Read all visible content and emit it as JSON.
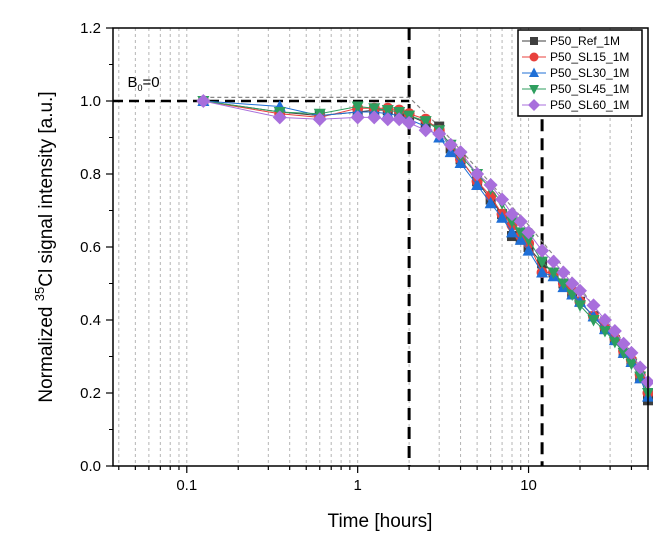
{
  "chart_data": {
    "type": "scatter",
    "xlabel": "Time [hours]",
    "ylabel_prefix": "Normalized ",
    "ylabel_sup": "35",
    "ylabel_suffix": "Cl signal intensity [a.u.]",
    "xscale": "log",
    "xlim": [
      0.037,
      50
    ],
    "ylim": [
      0.0,
      1.2
    ],
    "xticks": [
      {
        "v": 0.1,
        "label": "0.1"
      },
      {
        "v": 1,
        "label": "1"
      },
      {
        "v": 10,
        "label": "10"
      }
    ],
    "yticks": [
      {
        "v": 0.0,
        "label": "0.0"
      },
      {
        "v": 0.2,
        "label": "0.2"
      },
      {
        "v": 0.4,
        "label": "0.4"
      },
      {
        "v": 0.6,
        "label": "0.6"
      },
      {
        "v": 0.8,
        "label": "0.8"
      },
      {
        "v": 1.0,
        "label": "1.0"
      },
      {
        "v": 1.2,
        "label": "1.2"
      }
    ],
    "grid": "vertical minor dashed",
    "legend_position": "top-right",
    "annotation": {
      "text": "B",
      "sub": "0",
      "suffix": "=0",
      "x": 0.045,
      "y": 1.05
    },
    "reference_lines": [
      {
        "orientation": "horizontal",
        "y": 1.0,
        "x_from": 0.037,
        "x_to": 2
      },
      {
        "orientation": "vertical",
        "x": 2,
        "y_from": 0.0,
        "y_to": 1.2
      },
      {
        "orientation": "vertical",
        "x": 12,
        "y_from": 0.0,
        "y_to": 0.95
      }
    ],
    "envelope": {
      "x": [
        0.125,
        2,
        3,
        10,
        20,
        50
      ],
      "y": [
        1.01,
        1.01,
        0.93,
        0.66,
        0.49,
        0.22
      ]
    },
    "x": [
      0.125,
      0.35,
      0.6,
      1,
      1.25,
      1.5,
      1.75,
      2,
      2.5,
      3,
      3.5,
      4,
      5,
      6,
      7,
      8,
      9,
      10,
      12,
      14,
      16,
      18,
      20,
      24,
      28,
      32,
      36,
      40,
      45,
      50
    ],
    "series": [
      {
        "name": "P50_Ref_1M",
        "color": "#3f3f3f",
        "marker": "square",
        "values": [
          1.0,
          0.97,
          0.96,
          0.97,
          0.975,
          0.975,
          0.97,
          0.96,
          0.94,
          0.93,
          0.87,
          0.84,
          0.78,
          0.73,
          0.69,
          0.63,
          0.62,
          0.6,
          0.555,
          0.53,
          0.5,
          0.475,
          0.45,
          0.41,
          0.375,
          0.345,
          0.31,
          0.285,
          0.245,
          0.18
        ]
      },
      {
        "name": "P50_SL15_1M",
        "color": "#e8403c",
        "marker": "circle",
        "values": [
          1.0,
          0.965,
          0.955,
          0.98,
          0.98,
          0.98,
          0.975,
          0.965,
          0.95,
          0.92,
          0.88,
          0.84,
          0.78,
          0.74,
          0.69,
          0.66,
          0.63,
          0.61,
          0.53,
          0.53,
          0.5,
          0.48,
          0.45,
          0.41,
          0.38,
          0.35,
          0.315,
          0.29,
          0.25,
          0.2
        ]
      },
      {
        "name": "P50_SL30_1M",
        "color": "#1f6fd6",
        "marker": "triangle-up",
        "values": [
          1.0,
          0.985,
          0.96,
          0.97,
          0.97,
          0.965,
          0.96,
          0.95,
          0.93,
          0.9,
          0.86,
          0.83,
          0.77,
          0.72,
          0.68,
          0.64,
          0.62,
          0.59,
          0.53,
          0.52,
          0.49,
          0.47,
          0.45,
          0.41,
          0.375,
          0.345,
          0.31,
          0.285,
          0.24,
          0.19
        ]
      },
      {
        "name": "P50_SL45_1M",
        "color": "#2e9e5e",
        "marker": "triangle-down",
        "values": [
          1.0,
          0.97,
          0.965,
          0.985,
          0.98,
          0.975,
          0.97,
          0.96,
          0.945,
          0.92,
          0.88,
          0.85,
          0.8,
          0.76,
          0.72,
          0.67,
          0.64,
          0.62,
          0.56,
          0.53,
          0.5,
          0.47,
          0.44,
          0.4,
          0.37,
          0.34,
          0.31,
          0.28,
          0.245,
          0.2
        ]
      },
      {
        "name": "P50_SL60_1M",
        "color": "#a86fdc",
        "marker": "diamond",
        "values": [
          1.0,
          0.955,
          0.95,
          0.955,
          0.955,
          0.95,
          0.95,
          0.94,
          0.92,
          0.91,
          0.88,
          0.86,
          0.8,
          0.77,
          0.73,
          0.69,
          0.67,
          0.64,
          0.59,
          0.56,
          0.53,
          0.5,
          0.48,
          0.44,
          0.4,
          0.37,
          0.335,
          0.31,
          0.27,
          0.23
        ]
      }
    ]
  }
}
